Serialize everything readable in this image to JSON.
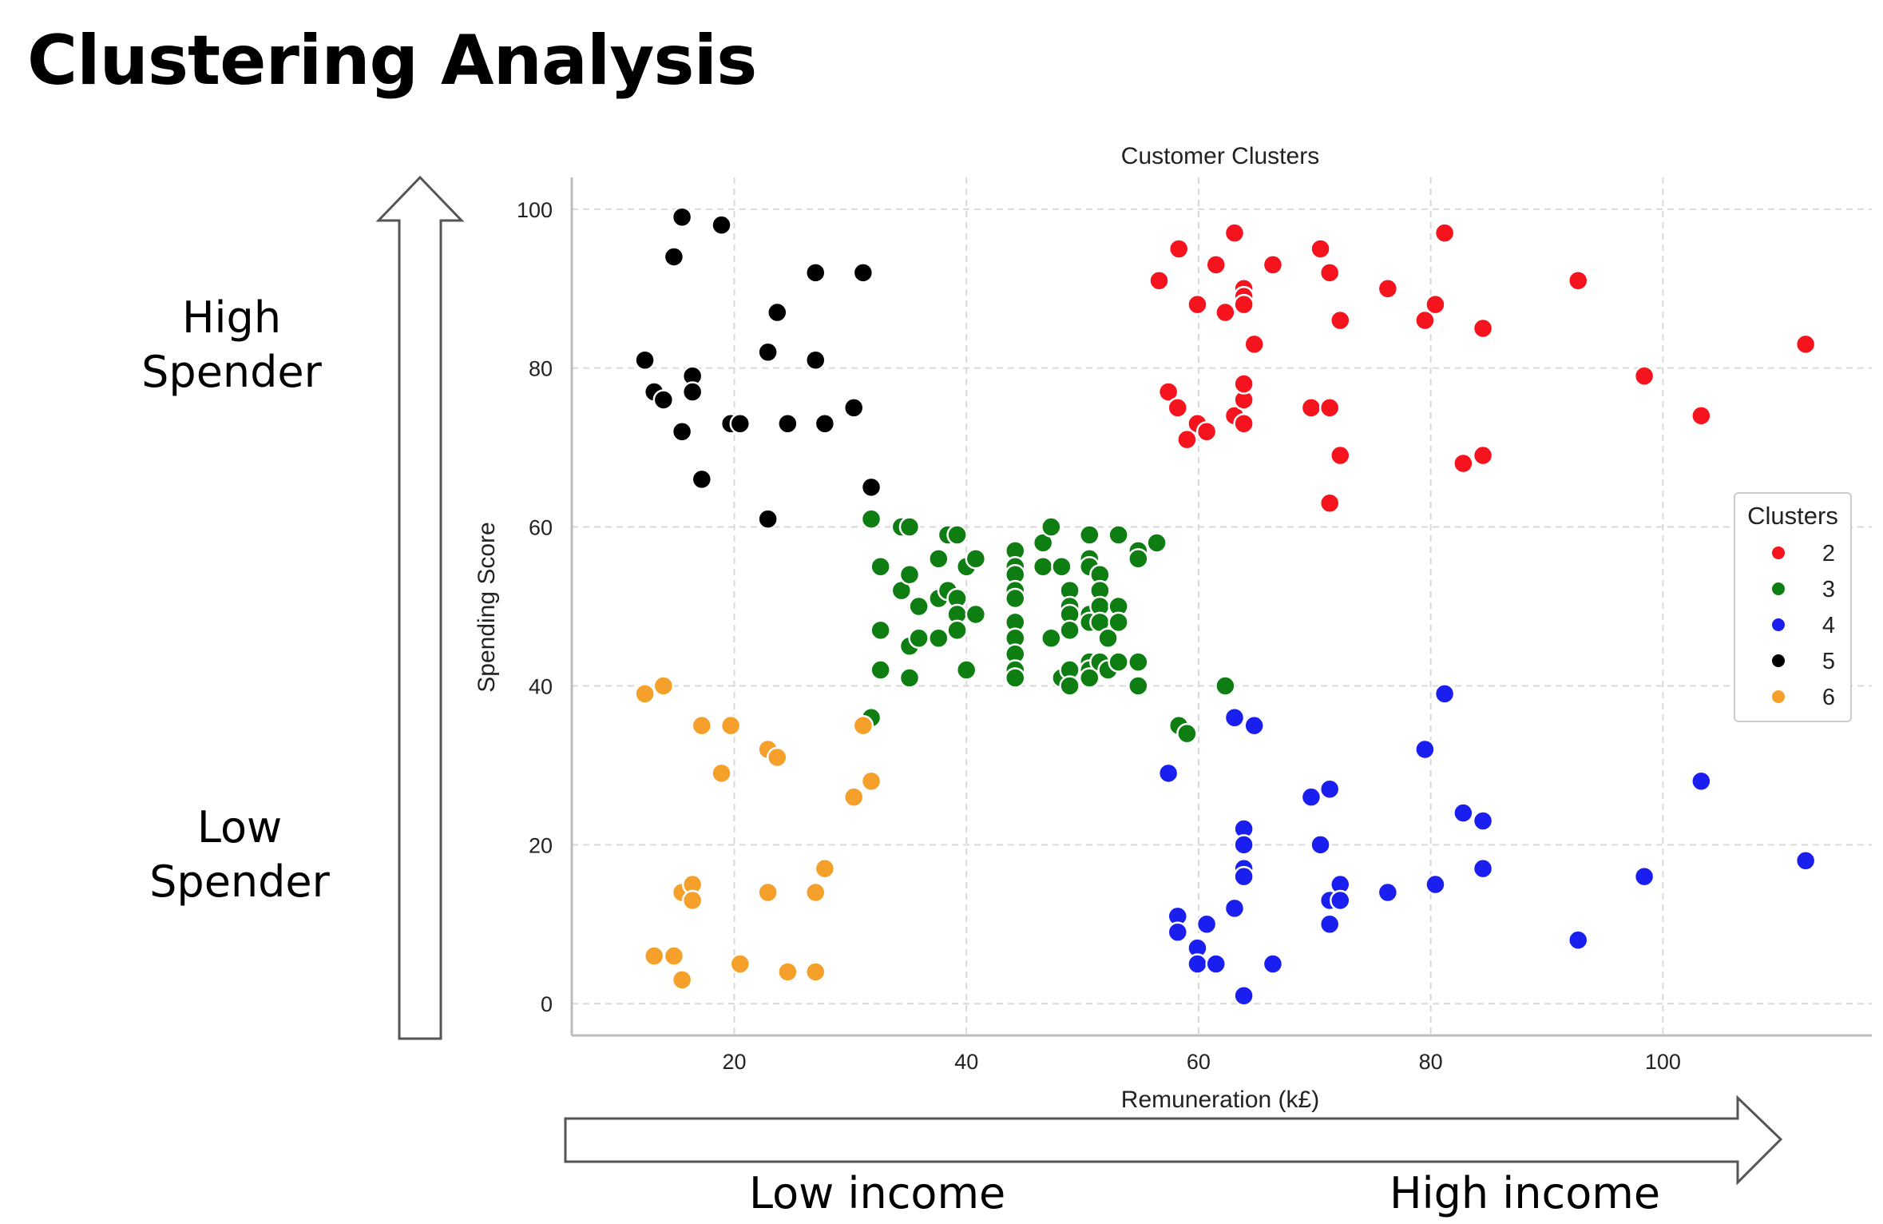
{
  "page": {
    "title": "Clustering Analysis",
    "high_spender": "High\nSpender",
    "low_spender": "Low\nSpender",
    "low_income": "Low income",
    "high_income": "High income"
  },
  "colors": {
    "2": "#f5131d",
    "3": "#0e7d12",
    "4": "#1a1ff0",
    "5": "#000000",
    "6": "#f5a02a",
    "grid": "#d9d9d9",
    "axis": "#bdbdbd",
    "arrow": "#555555"
  },
  "chart_data": {
    "type": "scatter",
    "title": "Customer Clusters",
    "xlabel": "Remuneration (k£)",
    "ylabel": "Spending Score",
    "xlim": [
      6,
      118
    ],
    "ylim": [
      -4,
      104
    ],
    "xticks": [
      20,
      40,
      60,
      80,
      100
    ],
    "yticks": [
      0,
      20,
      40,
      60,
      80,
      100
    ],
    "grid": true,
    "legend_title": "Clusters",
    "legend_position": "right",
    "series": [
      {
        "name": "2",
        "points": [
          [
            56.6,
            91
          ],
          [
            58.3,
            95
          ],
          [
            59.9,
            88
          ],
          [
            61.5,
            93
          ],
          [
            62.3,
            87
          ],
          [
            63.1,
            97
          ],
          [
            63.9,
            90
          ],
          [
            63.9,
            89
          ],
          [
            63.9,
            88
          ],
          [
            64.8,
            83
          ],
          [
            66.4,
            93
          ],
          [
            70.5,
            95
          ],
          [
            71.3,
            92
          ],
          [
            72.2,
            86
          ],
          [
            76.3,
            90
          ],
          [
            79.5,
            86
          ],
          [
            80.4,
            88
          ],
          [
            81.2,
            97
          ],
          [
            84.5,
            85
          ],
          [
            92.7,
            91
          ],
          [
            98.4,
            79
          ],
          [
            103.3,
            74
          ],
          [
            112.3,
            83
          ],
          [
            57.4,
            77
          ],
          [
            58.2,
            75
          ],
          [
            59.9,
            73
          ],
          [
            59.0,
            71
          ],
          [
            60.7,
            72
          ],
          [
            63.1,
            74
          ],
          [
            63.9,
            73
          ],
          [
            63.9,
            76
          ],
          [
            63.9,
            78
          ],
          [
            69.7,
            75
          ],
          [
            71.3,
            75
          ],
          [
            72.2,
            69
          ],
          [
            71.3,
            63
          ],
          [
            82.8,
            68
          ],
          [
            84.5,
            69
          ]
        ]
      },
      {
        "name": "3",
        "points": [
          [
            31.8,
            61
          ],
          [
            32.6,
            55
          ],
          [
            32.6,
            47
          ],
          [
            32.6,
            42
          ],
          [
            31.8,
            36
          ],
          [
            34.4,
            60
          ],
          [
            34.4,
            52
          ],
          [
            35.1,
            60
          ],
          [
            35.1,
            54
          ],
          [
            35.1,
            45
          ],
          [
            35.1,
            41
          ],
          [
            35.9,
            50
          ],
          [
            35.9,
            46
          ],
          [
            37.6,
            56
          ],
          [
            37.6,
            51
          ],
          [
            37.6,
            46
          ],
          [
            38.4,
            59
          ],
          [
            38.4,
            52
          ],
          [
            39.2,
            59
          ],
          [
            39.2,
            51
          ],
          [
            39.2,
            49
          ],
          [
            39.2,
            47
          ],
          [
            40.0,
            55
          ],
          [
            40.0,
            42
          ],
          [
            40.8,
            56
          ],
          [
            40.8,
            49
          ],
          [
            44.2,
            57
          ],
          [
            44.2,
            55
          ],
          [
            44.2,
            54
          ],
          [
            44.2,
            52
          ],
          [
            44.2,
            51
          ],
          [
            44.2,
            48
          ],
          [
            44.2,
            46
          ],
          [
            44.2,
            44
          ],
          [
            44.2,
            42
          ],
          [
            44.2,
            41
          ],
          [
            46.6,
            55
          ],
          [
            46.6,
            58
          ],
          [
            47.3,
            60
          ],
          [
            47.3,
            46
          ],
          [
            48.2,
            55
          ],
          [
            48.2,
            41
          ],
          [
            48.9,
            52
          ],
          [
            48.9,
            50
          ],
          [
            48.9,
            49
          ],
          [
            48.9,
            47
          ],
          [
            48.9,
            42
          ],
          [
            48.9,
            40
          ],
          [
            50.6,
            59
          ],
          [
            50.6,
            56
          ],
          [
            50.6,
            55
          ],
          [
            50.6,
            49
          ],
          [
            50.6,
            48
          ],
          [
            50.6,
            43
          ],
          [
            50.6,
            42
          ],
          [
            50.6,
            41
          ],
          [
            51.5,
            54
          ],
          [
            51.5,
            52
          ],
          [
            51.5,
            50
          ],
          [
            51.5,
            48
          ],
          [
            51.5,
            43
          ],
          [
            52.2,
            46
          ],
          [
            52.2,
            42
          ],
          [
            53.1,
            59
          ],
          [
            53.1,
            50
          ],
          [
            53.1,
            48
          ],
          [
            53.1,
            43
          ],
          [
            54.8,
            57
          ],
          [
            54.8,
            56
          ],
          [
            54.8,
            43
          ],
          [
            54.8,
            40
          ],
          [
            56.4,
            58
          ],
          [
            62.3,
            40
          ],
          [
            58.3,
            35
          ],
          [
            59.0,
            34
          ]
        ]
      },
      {
        "name": "4",
        "points": [
          [
            57.4,
            29
          ],
          [
            58.2,
            11
          ],
          [
            58.2,
            9
          ],
          [
            59.9,
            7
          ],
          [
            59.9,
            5
          ],
          [
            60.7,
            10
          ],
          [
            61.5,
            5
          ],
          [
            63.1,
            36
          ],
          [
            63.1,
            12
          ],
          [
            63.9,
            22
          ],
          [
            63.9,
            20
          ],
          [
            63.9,
            17
          ],
          [
            63.9,
            16
          ],
          [
            63.9,
            1
          ],
          [
            64.8,
            35
          ],
          [
            66.4,
            5
          ],
          [
            69.7,
            26
          ],
          [
            70.5,
            20
          ],
          [
            71.3,
            27
          ],
          [
            71.3,
            13
          ],
          [
            71.3,
            10
          ],
          [
            72.2,
            15
          ],
          [
            72.2,
            13
          ],
          [
            76.3,
            14
          ],
          [
            79.5,
            32
          ],
          [
            80.4,
            15
          ],
          [
            81.2,
            39
          ],
          [
            82.8,
            24
          ],
          [
            84.5,
            23
          ],
          [
            84.5,
            17
          ],
          [
            92.7,
            8
          ],
          [
            98.4,
            16
          ],
          [
            103.3,
            28
          ],
          [
            112.3,
            18
          ]
        ]
      },
      {
        "name": "5",
        "points": [
          [
            12.3,
            81
          ],
          [
            13.1,
            77
          ],
          [
            13.9,
            76
          ],
          [
            14.8,
            94
          ],
          [
            15.5,
            72
          ],
          [
            15.5,
            99
          ],
          [
            16.4,
            79
          ],
          [
            16.4,
            77
          ],
          [
            17.2,
            66
          ],
          [
            18.9,
            98
          ],
          [
            19.7,
            73
          ],
          [
            20.5,
            73
          ],
          [
            22.9,
            82
          ],
          [
            22.9,
            61
          ],
          [
            23.7,
            87
          ],
          [
            24.6,
            73
          ],
          [
            27.0,
            92
          ],
          [
            27.0,
            81
          ],
          [
            27.8,
            73
          ],
          [
            30.3,
            75
          ],
          [
            31.1,
            92
          ],
          [
            31.8,
            65
          ]
        ]
      },
      {
        "name": "6",
        "points": [
          [
            12.3,
            39
          ],
          [
            13.1,
            6
          ],
          [
            13.9,
            40
          ],
          [
            14.8,
            6
          ],
          [
            15.5,
            14
          ],
          [
            15.5,
            3
          ],
          [
            16.4,
            15
          ],
          [
            16.4,
            13
          ],
          [
            17.2,
            35
          ],
          [
            18.9,
            29
          ],
          [
            19.7,
            35
          ],
          [
            20.5,
            5
          ],
          [
            22.9,
            32
          ],
          [
            22.9,
            14
          ],
          [
            23.7,
            31
          ],
          [
            24.6,
            4
          ],
          [
            27.0,
            14
          ],
          [
            27.0,
            4
          ],
          [
            27.8,
            17
          ],
          [
            30.3,
            26
          ],
          [
            31.1,
            35
          ],
          [
            31.8,
            28
          ]
        ]
      }
    ]
  }
}
